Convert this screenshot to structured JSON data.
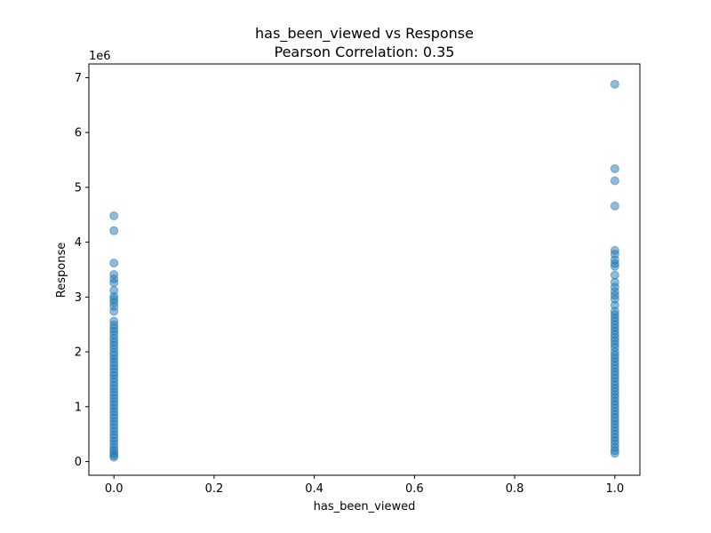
{
  "chart_data": {
    "type": "scatter",
    "title": "has_been_viewed vs Response",
    "subtitle": "Pearson Correlation: 0.35",
    "xlabel": "has_been_viewed",
    "ylabel": "Response",
    "y_offset_label": "1e6",
    "xlim": [
      -0.05,
      1.05
    ],
    "ylim": [
      -250000,
      7250000
    ],
    "x_ticks": [
      0.0,
      0.2,
      0.4,
      0.6,
      0.8,
      1.0
    ],
    "x_tick_labels": [
      "0.0",
      "0.2",
      "0.4",
      "0.6",
      "0.8",
      "1.0"
    ],
    "y_ticks": [
      0,
      1000000,
      2000000,
      3000000,
      4000000,
      5000000,
      6000000,
      7000000
    ],
    "y_tick_labels": [
      "0",
      "1",
      "2",
      "3",
      "4",
      "5",
      "6",
      "7"
    ],
    "grid": false,
    "marker_color": "#1f77b4",
    "marker_alpha": 0.5,
    "series": [
      {
        "x_value": 0,
        "y": [
          4480000,
          4210000,
          3620000,
          3410000,
          3330000,
          3260000,
          3120000,
          3010000,
          2960000,
          2900000,
          2830000,
          2740000,
          2560000,
          2490000,
          2430000,
          2370000,
          2310000,
          2240000,
          2180000,
          2120000,
          2060000,
          1990000,
          1930000,
          1870000,
          1810000,
          1750000,
          1690000,
          1630000,
          1570000,
          1510000,
          1450000,
          1390000,
          1330000,
          1270000,
          1210000,
          1150000,
          1090000,
          1030000,
          970000,
          910000,
          850000,
          790000,
          730000,
          670000,
          610000,
          550000,
          490000,
          430000,
          370000,
          310000,
          250000,
          200000,
          150000,
          110000,
          80000
        ]
      },
      {
        "x_value": 1,
        "y": [
          6880000,
          5340000,
          5120000,
          4660000,
          3850000,
          3780000,
          3680000,
          3610000,
          3560000,
          3400000,
          3270000,
          3180000,
          3100000,
          3030000,
          2960000,
          2850000,
          2740000,
          2680000,
          2620000,
          2560000,
          2500000,
          2440000,
          2380000,
          2320000,
          2260000,
          2200000,
          2140000,
          2080000,
          2000000,
          1940000,
          1880000,
          1820000,
          1760000,
          1700000,
          1640000,
          1580000,
          1520000,
          1460000,
          1400000,
          1340000,
          1280000,
          1220000,
          1160000,
          1100000,
          1040000,
          980000,
          920000,
          860000,
          800000,
          740000,
          680000,
          620000,
          560000,
          500000,
          440000,
          380000,
          320000,
          260000,
          200000,
          150000
        ]
      }
    ]
  }
}
